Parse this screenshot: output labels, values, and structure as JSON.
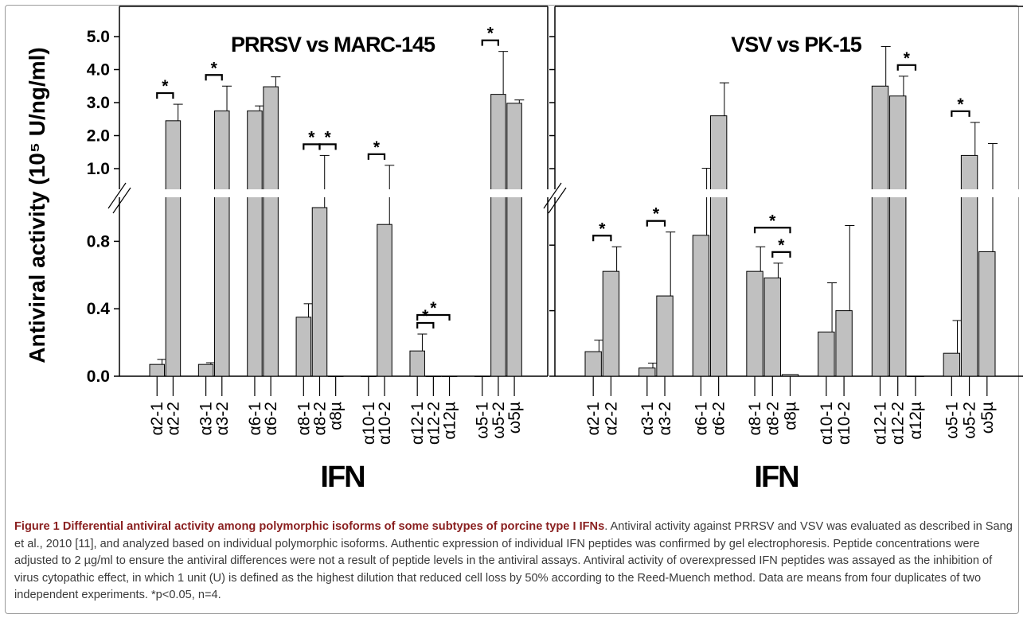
{
  "caption": {
    "title": "Figure 1 Differential antiviral activity among polymorphic isoforms of some subtypes of porcine type I IFNs",
    "text": ". Antiviral activity against PRRSV and VSV was evaluated as described in Sang et al., 2010 [11], and analyzed based on individual polymorphic isoforms. Authentic expression of individual IFN peptides was confirmed by gel electrophoresis. Peptide concentrations were adjusted to 2 µg/ml to ensure the antiviral differences were not a result of peptide levels in the antiviral assays. Antiviral activity of overexpressed IFN peptides was assayed as the inhibition of virus cytopathic effect, in which 1 unit (U) is defined as the highest dilution that reduced cell loss by 50% according to the Reed-Muench method. Data are means from four duplicates of two independent experiments. *p<0.05, n=4."
  },
  "colors": {
    "bar": "#c0c0c0",
    "stroke": "#000000",
    "caption_title": "#8a2020"
  },
  "chart_data": [
    {
      "type": "bar",
      "title": "PRRSV vs MARC-145",
      "ylabel": "Antiviral activity (10⁵ U/ng/ml)",
      "xlabel": "IFN",
      "axis_break": true,
      "ylim_lower": [
        0,
        1.0
      ],
      "ylim_upper": [
        0.5,
        5.0
      ],
      "yticks_lower": [
        "0.0",
        "0.4",
        "0.8"
      ],
      "yticks_upper": [
        "1.0",
        "2.0",
        "3.0",
        "4.0",
        "5.0"
      ],
      "categories": [
        "α2-1",
        "α2-2",
        "α3-1",
        "α3-2",
        "α6-1",
        "α6-2",
        "α8-1",
        "α8-2",
        "α8µ",
        "α10-1",
        "α10-2",
        "α12-1",
        "α12-2",
        "α12µ",
        "ω5-1",
        "ω5-2",
        "ω5µ"
      ],
      "group_sizes": [
        2,
        2,
        2,
        3,
        2,
        3,
        3
      ],
      "values": [
        0.07,
        2.45,
        0.07,
        2.75,
        2.75,
        3.48,
        0.35,
        1.0,
        0.0,
        0.0,
        0.9,
        0.15,
        0.0,
        0.0,
        0.0,
        3.25,
        2.98
      ],
      "errors": [
        0.03,
        0.5,
        0.01,
        0.75,
        0.15,
        0.3,
        0.08,
        0.4,
        0.0,
        0.0,
        0.2,
        0.1,
        0.0,
        0.0,
        0.0,
        1.3,
        0.1
      ],
      "significance": [
        {
          "from": 0,
          "to": 1,
          "label": "*"
        },
        {
          "from": 2,
          "to": 3,
          "label": "*"
        },
        {
          "from": 6,
          "to": 7,
          "label": "*"
        },
        {
          "from": 7,
          "to": 8,
          "label": "*"
        },
        {
          "from": 9,
          "to": 10,
          "label": "*"
        },
        {
          "from": 11,
          "to": 12,
          "label": "*"
        },
        {
          "from": 11,
          "to": 13,
          "label": "*"
        },
        {
          "from": 14,
          "to": 15,
          "label": "*"
        }
      ]
    },
    {
      "type": "bar",
      "title": "VSV vs PK-15",
      "xlabel": "IFN",
      "axis_break": true,
      "categories": [
        "α2-1",
        "α2-2",
        "α3-1",
        "α3-2",
        "α6-1",
        "α6-2",
        "α8-1",
        "α8-2",
        "α8µ",
        "α10-1",
        "α10-2",
        "α12-1",
        "α12-2",
        "α12µ",
        "ω5-1",
        "ω5-2",
        "ω5µ"
      ],
      "group_sizes": [
        2,
        2,
        2,
        3,
        2,
        3,
        3
      ],
      "values": [
        0.15,
        0.64,
        0.05,
        0.49,
        0.86,
        2.6,
        0.64,
        0.6,
        0.01,
        0.27,
        0.4,
        3.5,
        3.2,
        0.0,
        0.14,
        1.4,
        0.76
      ],
      "errors": [
        0.07,
        0.15,
        0.03,
        0.39,
        0.15,
        1.0,
        0.15,
        0.09,
        0.0,
        0.3,
        0.52,
        1.2,
        0.6,
        0.0,
        0.2,
        1.0,
        1.0
      ],
      "significance": [
        {
          "from": 0,
          "to": 1,
          "label": "*"
        },
        {
          "from": 2,
          "to": 3,
          "label": "*"
        },
        {
          "from": 6,
          "to": 8,
          "label": "*"
        },
        {
          "from": 7,
          "to": 8,
          "label": "*"
        },
        {
          "from": 12,
          "to": 13,
          "label": "*"
        },
        {
          "from": 14,
          "to": 15,
          "label": "*"
        }
      ]
    }
  ]
}
